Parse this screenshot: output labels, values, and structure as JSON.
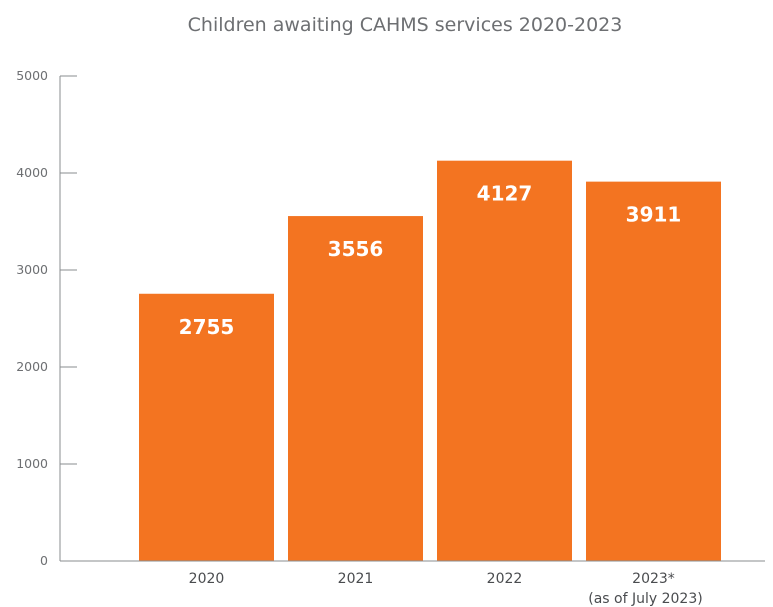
{
  "chart_data": {
    "type": "bar",
    "title": "Children awaiting CAHMS services 2020-2023",
    "xlabel": "",
    "ylabel": "",
    "categories": [
      "2020",
      "2021",
      "2022",
      "2023*"
    ],
    "category_notes": [
      "",
      "",
      "",
      "(as of July 2023)"
    ],
    "values": [
      2755,
      3556,
      4127,
      3911
    ],
    "data_labels": [
      "2755",
      "3556",
      "4127",
      "3911"
    ],
    "ylim": [
      0,
      5000
    ],
    "yticks": [
      0,
      1000,
      2000,
      3000,
      4000,
      5000
    ],
    "ytick_labels": [
      "0",
      "1000",
      "2000",
      "3000",
      "4000",
      "5000"
    ],
    "grid": false,
    "legend": "none",
    "bar_color": "#f37421"
  }
}
